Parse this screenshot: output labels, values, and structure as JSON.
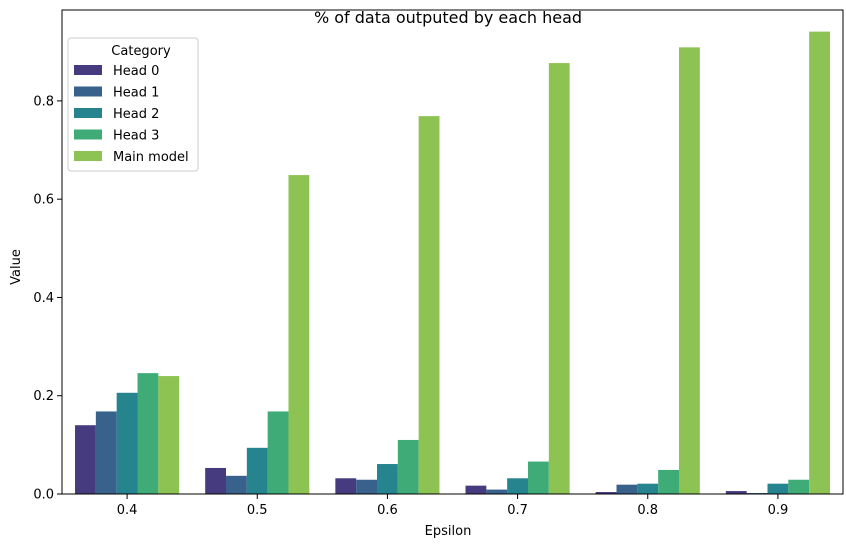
{
  "chart_data": {
    "type": "bar",
    "title": "% of data outputed by each head",
    "xlabel": "Epsilon",
    "ylabel": "Value",
    "categories": [
      "0.4",
      "0.5",
      "0.6",
      "0.7",
      "0.8",
      "0.9"
    ],
    "ylim": [
      0,
      0.985
    ],
    "yticks": [
      0.0,
      0.2,
      0.4,
      0.6,
      0.8
    ],
    "ytick_labels": [
      "0.0",
      "0.2",
      "0.4",
      "0.6",
      "0.8"
    ],
    "grid": false,
    "legend": {
      "title": "Category",
      "position": "top-left"
    },
    "series": [
      {
        "name": "Head 0",
        "color": "#463b7e",
        "values": [
          0.14,
          0.053,
          0.032,
          0.017,
          0.004,
          0.006
        ]
      },
      {
        "name": "Head 1",
        "color": "#38618c",
        "values": [
          0.168,
          0.037,
          0.029,
          0.009,
          0.019,
          0.002
        ]
      },
      {
        "name": "Head 2",
        "color": "#25848e",
        "values": [
          0.206,
          0.094,
          0.061,
          0.032,
          0.021,
          0.021
        ]
      },
      {
        "name": "Head 3",
        "color": "#3fac78",
        "values": [
          0.246,
          0.168,
          0.11,
          0.066,
          0.049,
          0.029
        ]
      },
      {
        "name": "Main model",
        "color": "#8dc352",
        "values": [
          0.24,
          0.649,
          0.769,
          0.877,
          0.909,
          0.941
        ]
      }
    ]
  }
}
